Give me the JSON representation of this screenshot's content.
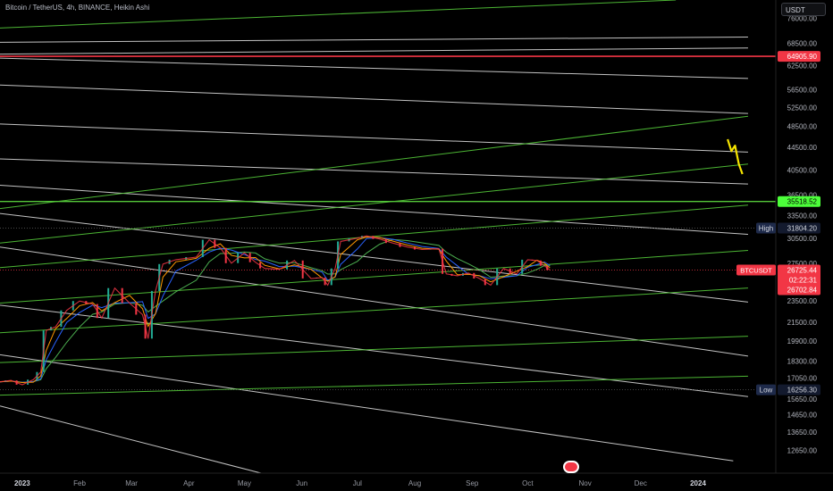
{
  "header": {
    "symbol": "Bitcoin / TetherUS",
    "interval": "4h",
    "exchange": "BINANCE",
    "chart_style": "Heikin Ashi",
    "separator": ", "
  },
  "currency_button": "USDT",
  "colors": {
    "background": "#000000",
    "white_lines": "#d9d9d9",
    "green_lines": "#55c93a",
    "red_level": "#f23645",
    "yellow_projection": "#f5e400",
    "candle_up": "#22ab94",
    "candle_down": "#f23645",
    "ma_fast": "#ff9800",
    "ma_mid": "#2962ff",
    "ma_slow": "#4caf50"
  },
  "badge_icon": "us-flag-icon",
  "chart_data": {
    "type": "line",
    "title": "",
    "xlabel": "",
    "ylabel": "",
    "x_range": [
      "2022-12-20",
      "2024-02-12"
    ],
    "ylim": [
      11500,
      82000
    ],
    "scale": "log",
    "grid": false,
    "y_ticks": [
      "76000.00",
      "68500.00",
      "62500.00",
      "56500.00",
      "52500.00",
      "48500.00",
      "44500.00",
      "40500.00",
      "36500.00",
      "33500.00",
      "30500.00",
      "27500.00",
      "23500.00",
      "21500.00",
      "19900.00",
      "18300.00",
      "17050.00",
      "15650.00",
      "14650.00",
      "13650.00",
      "12650.00"
    ],
    "x_ticks": [
      {
        "label": "2023",
        "date": "2023-01-01"
      },
      {
        "label": "Feb",
        "date": "2023-02-01"
      },
      {
        "label": "Mar",
        "date": "2023-03-01"
      },
      {
        "label": "Apr",
        "date": "2023-04-01"
      },
      {
        "label": "May",
        "date": "2023-05-01"
      },
      {
        "label": "Jun",
        "date": "2023-06-01"
      },
      {
        "label": "Jul",
        "date": "2023-07-01"
      },
      {
        "label": "Aug",
        "date": "2023-08-01"
      },
      {
        "label": "Sep",
        "date": "2023-09-01"
      },
      {
        "label": "Oct",
        "date": "2023-10-01"
      },
      {
        "label": "Nov",
        "date": "2023-11-01"
      },
      {
        "label": "Dec",
        "date": "2023-12-01"
      },
      {
        "label": "2024",
        "date": "2024-01-01"
      }
    ],
    "price_series": {
      "name": "BTCUSDT",
      "x": [
        "2022-12-20",
        "2022-12-26",
        "2023-01-01",
        "2023-01-07",
        "2023-01-11",
        "2023-01-14",
        "2023-01-19",
        "2023-01-25",
        "2023-02-01",
        "2023-02-08",
        "2023-02-13",
        "2023-02-20",
        "2023-02-28",
        "2023-03-07",
        "2023-03-10",
        "2023-03-14",
        "2023-03-18",
        "2023-03-25",
        "2023-04-05",
        "2023-04-12",
        "2023-04-18",
        "2023-04-24",
        "2023-05-01",
        "2023-05-07",
        "2023-05-12",
        "2023-05-20",
        "2023-05-28",
        "2023-06-06",
        "2023-06-12",
        "2023-06-15",
        "2023-06-19",
        "2023-06-22",
        "2023-07-01",
        "2023-07-06",
        "2023-07-13",
        "2023-07-20",
        "2023-07-28",
        "2023-08-05",
        "2023-08-14",
        "2023-08-18",
        "2023-08-24",
        "2023-08-30",
        "2023-09-05",
        "2023-09-11",
        "2023-09-18",
        "2023-09-25",
        "2023-10-01",
        "2023-10-06",
        "2023-10-10",
        "2023-10-13"
      ],
      "y": [
        16800,
        16900,
        16600,
        16950,
        17500,
        20800,
        21100,
        22600,
        23500,
        23200,
        21900,
        24800,
        23300,
        22200,
        20100,
        24500,
        27400,
        27900,
        28200,
        30300,
        29300,
        27500,
        28700,
        27600,
        26900,
        26800,
        27800,
        25800,
        25900,
        25100,
        26900,
        30100,
        30500,
        30800,
        30400,
        29900,
        29400,
        29100,
        29200,
        26300,
        26100,
        26400,
        25800,
        25100,
        26900,
        26300,
        27900,
        27800,
        27200,
        26725
      ]
    },
    "projection_series": {
      "name": "",
      "x": [
        "2024-01-17",
        "2024-01-19",
        "2024-01-21",
        "2024-01-23",
        "2024-01-25"
      ],
      "y": [
        46000,
        43800,
        44800,
        41500,
        39800
      ]
    },
    "levels": {
      "upper_horizontal": 64905.9,
      "green_horizontal": 35518.52,
      "high": 31804.2,
      "low": 16256.3,
      "current_price": 26725.44,
      "countdown": "02:22:31",
      "reference_price": 26702.84
    },
    "labels": {
      "high": "High",
      "low": "Low",
      "symbol": "BTCUSDT",
      "upper_level": "64905.90",
      "green_level": "35518.52",
      "high_value": "31804.20",
      "low_value": "16256.30",
      "current_value": "26725.44",
      "countdown_value": "02:22:31",
      "reference_value": "26702.84"
    },
    "trend_lines": [
      {
        "color": "green",
        "from": {
          "date": "2022-12-20",
          "price": 73000
        },
        "to": {
          "date": "2023-12-20",
          "price": 82000
        }
      },
      {
        "color": "white",
        "from": {
          "date": "2022-12-20",
          "price": 68800
        },
        "to": {
          "date": "2024-01-28",
          "price": 70300
        }
      },
      {
        "color": "white",
        "from": {
          "date": "2022-12-20",
          "price": 65500
        },
        "to": {
          "date": "2024-01-28",
          "price": 67200
        }
      },
      {
        "color": "white",
        "from": {
          "date": "2022-12-20",
          "price": 64400
        },
        "to": {
          "date": "2024-01-28",
          "price": 59200
        }
      },
      {
        "color": "white",
        "from": {
          "date": "2022-12-20",
          "price": 57600
        },
        "to": {
          "date": "2024-01-28",
          "price": 51200
        }
      },
      {
        "color": "white",
        "from": {
          "date": "2022-12-20",
          "price": 49000
        },
        "to": {
          "date": "2024-01-28",
          "price": 43600
        }
      },
      {
        "color": "white",
        "from": {
          "date": "2022-12-20",
          "price": 42400
        },
        "to": {
          "date": "2024-01-28",
          "price": 38200
        }
      },
      {
        "color": "white",
        "from": {
          "date": "2022-12-20",
          "price": 38000
        },
        "to": {
          "date": "2024-01-28",
          "price": 31000
        }
      },
      {
        "color": "white",
        "from": {
          "date": "2022-12-20",
          "price": 33800
        },
        "to": {
          "date": "2024-01-28",
          "price": 23400
        }
      },
      {
        "color": "white",
        "from": {
          "date": "2022-12-20",
          "price": 29400
        },
        "to": {
          "date": "2024-01-28",
          "price": 18700
        }
      },
      {
        "color": "white",
        "from": {
          "date": "2022-12-20",
          "price": 23100
        },
        "to": {
          "date": "2024-01-28",
          "price": 15800
        }
      },
      {
        "color": "white",
        "from": {
          "date": "2022-12-20",
          "price": 18800
        },
        "to": {
          "date": "2024-01-20",
          "price": 12100
        }
      },
      {
        "color": "white",
        "from": {
          "date": "2022-12-20",
          "price": 15200
        },
        "to": {
          "date": "2023-05-10",
          "price": 11500
        }
      },
      {
        "color": "green",
        "from": {
          "date": "2022-12-20",
          "price": 34500
        },
        "to": {
          "date": "2024-01-28",
          "price": 50600
        }
      },
      {
        "color": "green",
        "from": {
          "date": "2022-12-20",
          "price": 29900
        },
        "to": {
          "date": "2024-01-28",
          "price": 41500
        }
      },
      {
        "color": "green",
        "from": {
          "date": "2022-12-20",
          "price": 27000
        },
        "to": {
          "date": "2024-01-28",
          "price": 35000
        }
      },
      {
        "color": "green",
        "from": {
          "date": "2022-12-20",
          "price": 23300
        },
        "to": {
          "date": "2024-01-28",
          "price": 29000
        }
      },
      {
        "color": "green",
        "from": {
          "date": "2022-12-20",
          "price": 20600
        },
        "to": {
          "date": "2024-01-28",
          "price": 24800
        }
      },
      {
        "color": "green",
        "from": {
          "date": "2022-12-20",
          "price": 18200
        },
        "to": {
          "date": "2024-01-28",
          "price": 20300
        }
      },
      {
        "color": "green",
        "from": {
          "date": "2022-12-20",
          "price": 15900
        },
        "to": {
          "date": "2024-01-28",
          "price": 17200
        }
      }
    ]
  }
}
